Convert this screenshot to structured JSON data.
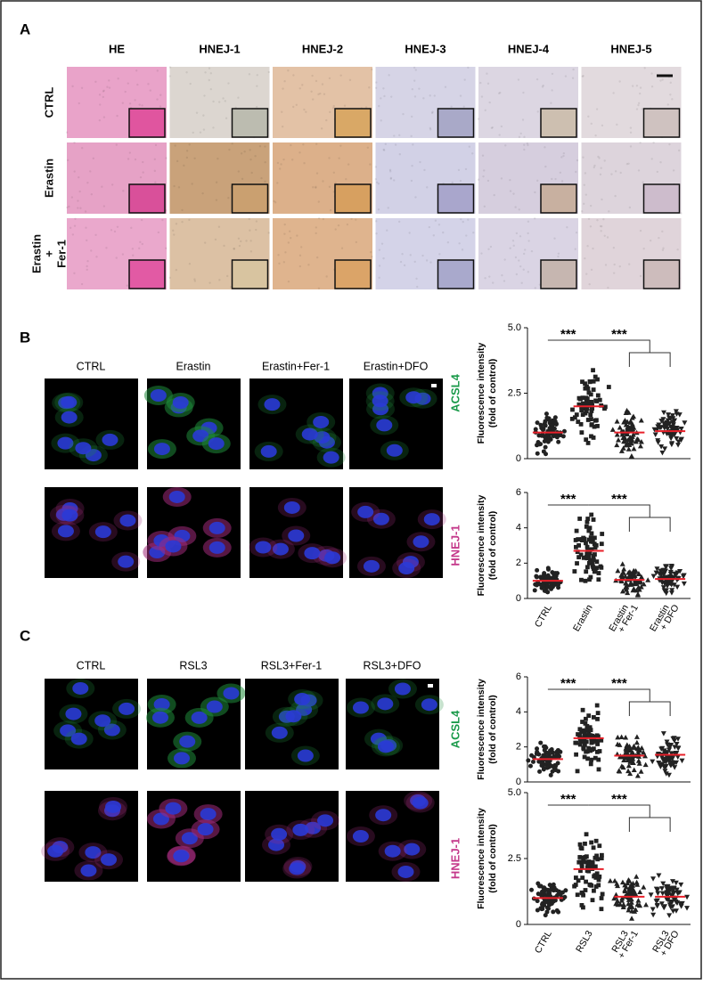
{
  "panel_a": {
    "label": "A",
    "columns": [
      "HE",
      "HNEJ-1",
      "HNEJ-2",
      "HNEJ-3",
      "HNEJ-4",
      "HNEJ-5"
    ],
    "rows": [
      [
        "CTRL"
      ],
      [
        "Erastin"
      ],
      [
        "Erastin",
        "+",
        "Fer-1"
      ]
    ]
  },
  "panel_b": {
    "label": "B",
    "columns": [
      "CTRL",
      "Erastin",
      "Erastin+Fer-1",
      "Erastin+DFO"
    ],
    "rows": [
      "ACSL4",
      "HNEJ-1"
    ],
    "categories": [
      [
        "CTRL"
      ],
      [
        "Erastin"
      ],
      [
        "Erastin",
        "+ Fer-1"
      ],
      [
        "Erastin",
        "+ DFO"
      ]
    ],
    "charts": [
      {
        "type": "scatter",
        "label": "ACSL4",
        "ylabel": [
          "Fluorescence intensity",
          "(fold of control)"
        ],
        "ylim": [
          0,
          5
        ],
        "yticks": [
          0,
          2.5,
          {
            "value": 5,
            "label": "5.0"
          }
        ],
        "means": [
          1.0,
          2.0,
          1.0,
          1.05
        ],
        "significance": [
          "***",
          "***"
        ]
      },
      {
        "type": "scatter",
        "label": "HNEJ-1",
        "ylabel": [
          "Fluorescence intensity",
          "(fold of control)"
        ],
        "ylim": [
          0,
          6
        ],
        "yticks": [
          0,
          2,
          4,
          6
        ],
        "means": [
          1.0,
          2.7,
          1.05,
          1.1
        ],
        "significance": [
          "***",
          "***"
        ]
      }
    ]
  },
  "panel_c": {
    "label": "C",
    "columns": [
      "CTRL",
      "RSL3",
      "RSL3+Fer-1",
      "RSL3+DFO"
    ],
    "rows": [
      "ACSL4",
      "HNEJ-1"
    ],
    "categories": [
      [
        "CTRL"
      ],
      [
        "RSL3"
      ],
      [
        "RSL3",
        "+ Fer-1"
      ],
      [
        "RSL3",
        "+ DFO"
      ]
    ],
    "charts": [
      {
        "type": "scatter",
        "label": "ACSL4",
        "ylabel": [
          "Fluorescence intensity",
          "(fold of control)"
        ],
        "ylim": [
          0,
          6
        ],
        "yticks": [
          0,
          2,
          4,
          6
        ],
        "means": [
          1.3,
          2.5,
          1.5,
          1.55
        ],
        "significance": [
          "***",
          "***"
        ]
      },
      {
        "type": "scatter",
        "label": "HNEJ-1",
        "ylabel": [
          "Fluorescence intensity",
          "(fold of control)"
        ],
        "ylim": [
          0,
          5
        ],
        "yticks": [
          0,
          2.5,
          {
            "value": 5,
            "label": "5.0"
          }
        ],
        "means": [
          1.0,
          2.1,
          1.05,
          1.05
        ],
        "significance": [
          "***",
          "***"
        ]
      }
    ]
  }
}
